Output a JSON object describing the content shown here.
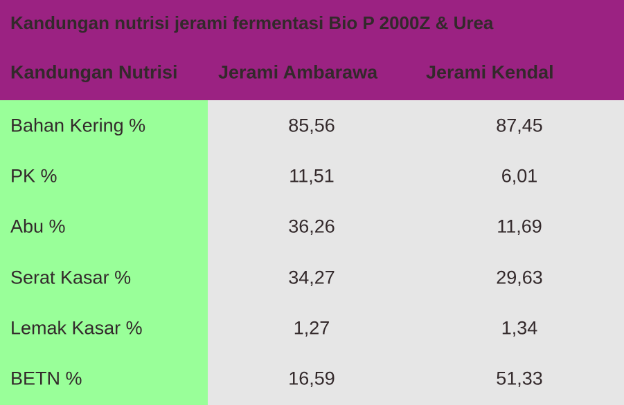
{
  "title": "Kandungan nutrisi jerami fermentasi Bio P 2000Z & Urea",
  "table": {
    "header": [
      "Kandungan Nutrisi",
      "Jerami Ambarawa",
      "Jerami Kendal"
    ],
    "rows": [
      [
        "Bahan Kering %",
        "85,56",
        "87,45"
      ],
      [
        "PK %",
        "11,51",
        "6,01"
      ],
      [
        "Abu %",
        "36,26",
        "11,69"
      ],
      [
        "Serat Kasar %",
        "34,27",
        "29,63"
      ],
      [
        "Lemak Kasar %",
        "1,27",
        "1,34"
      ],
      [
        "BETN %",
        "16,59",
        "51,33"
      ]
    ]
  }
}
